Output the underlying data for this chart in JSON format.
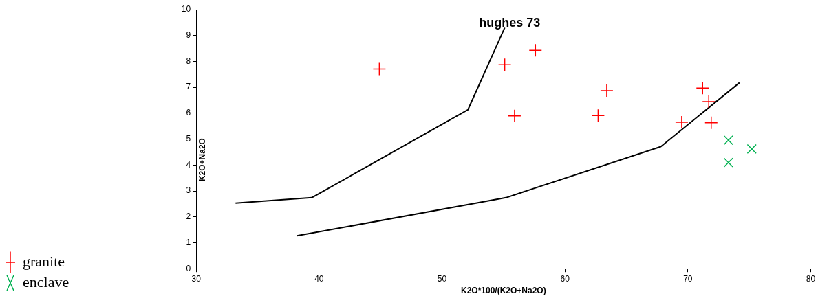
{
  "chart_data": {
    "type": "scatter",
    "xlabel": "K2O*100/(K2O+Na2O)",
    "ylabel": "K2O+Na2O",
    "xlim": [
      30,
      80
    ],
    "xticks": [
      30,
      40,
      50,
      60,
      70,
      80
    ],
    "ylim": [
      0,
      10
    ],
    "yticks": [
      0,
      1,
      2,
      3,
      4,
      5,
      6,
      7,
      8,
      9,
      10
    ],
    "grid": false,
    "legend": "left",
    "annotations": [
      "hughes 73"
    ],
    "series": [
      {
        "name": "granite",
        "marker": "cross",
        "color": "#ff0000",
        "x": [
          44.9,
          55.1,
          57.6,
          55.9,
          63.4,
          62.7,
          69.5,
          71.2,
          71.7,
          71.9
        ],
        "values": [
          7.71,
          7.87,
          8.43,
          5.9,
          6.87,
          5.91,
          5.65,
          6.97,
          6.45,
          5.63
        ]
      },
      {
        "name": "enclave",
        "marker": "x",
        "color": "#00b050",
        "x": [
          73.3,
          73.3,
          75.2
        ],
        "values": [
          4.96,
          4.1,
          4.62
        ]
      },
      {
        "type": "line",
        "marker": "none",
        "color": "#000000",
        "x": [
          33.2,
          39.4,
          52.1,
          55.1
        ],
        "values": [
          2.53,
          2.74,
          6.13,
          9.3
        ]
      },
      {
        "type": "line",
        "marker": "none",
        "color": "#000000",
        "x": [
          38.2,
          55.2,
          67.8,
          74.2
        ],
        "values": [
          1.27,
          2.74,
          4.71,
          7.18
        ]
      }
    ]
  }
}
